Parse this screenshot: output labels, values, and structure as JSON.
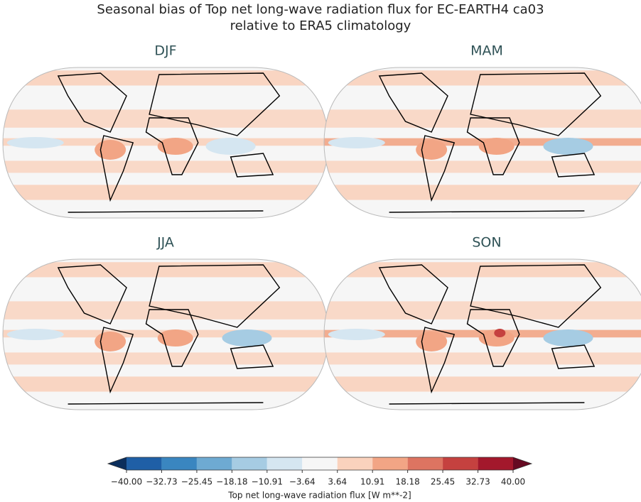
{
  "chart_data": {
    "type": "map",
    "title": "Seasonal bias of Top net long-wave radiation flux for EC-EARTH4 ca03\nrelative to ERA5 climatology",
    "panels": [
      {
        "title": "DJF"
      },
      {
        "title": "MAM"
      },
      {
        "title": "JJA"
      },
      {
        "title": "SON"
      }
    ],
    "colorbar": {
      "label": "Top net long-wave radiation flux [W m**-2]",
      "ticks": [
        {
          "value": -40.0,
          "label": "−40.00"
        },
        {
          "value": -32.73,
          "label": "−32.73"
        },
        {
          "value": -25.45,
          "label": "−25.45"
        },
        {
          "value": -18.18,
          "label": "−18.18"
        },
        {
          "value": -10.91,
          "label": "−10.91"
        },
        {
          "value": -3.64,
          "label": "−3.64"
        },
        {
          "value": 3.64,
          "label": "3.64"
        },
        {
          "value": 10.91,
          "label": "10.91"
        },
        {
          "value": 18.18,
          "label": "18.18"
        },
        {
          "value": 25.45,
          "label": "25.45"
        },
        {
          "value": 32.73,
          "label": "32.73"
        },
        {
          "value": 40.0,
          "label": "40.00"
        }
      ],
      "colors": [
        "#1f5fa6",
        "#3a86c0",
        "#6eaad2",
        "#a6cce3",
        "#d5e6f1",
        "#f6f6f6",
        "#fad2bd",
        "#f2a585",
        "#dd7461",
        "#c5413f",
        "#a3182c"
      ],
      "under_color": "#0b2e5c",
      "over_color": "#660a22"
    }
  }
}
